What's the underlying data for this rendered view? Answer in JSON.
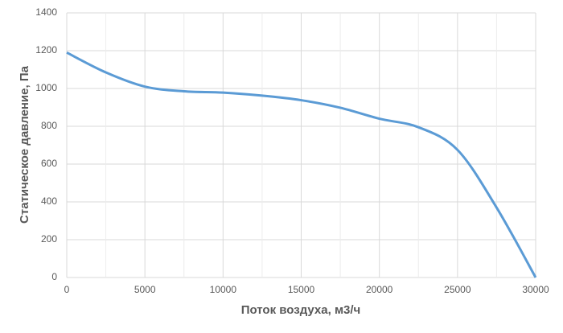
{
  "chart_data": {
    "type": "line",
    "x_label": "Поток воздуха, м3/ч",
    "y_label": "Статическое давление, Па",
    "x": [
      0,
      2500,
      5000,
      7500,
      10000,
      12500,
      15000,
      17500,
      20000,
      22500,
      25000,
      27500,
      30000
    ],
    "series": [
      {
        "name": "Статическое давление",
        "color": "#5b9bd5",
        "values": [
          1190,
          1085,
          1010,
          985,
          978,
          962,
          938,
          898,
          840,
          795,
          675,
          370,
          0
        ]
      }
    ],
    "xlim": [
      0,
      30000
    ],
    "xticks": [
      0,
      5000,
      10000,
      15000,
      20000,
      25000,
      30000
    ],
    "x_minor_grid": [
      2500,
      7500,
      12500,
      17500,
      22500,
      27500
    ],
    "ylim": [
      0,
      1400
    ],
    "yticks": [
      0,
      200,
      400,
      600,
      800,
      1000,
      1200,
      1400
    ],
    "grid": true,
    "smooth": true
  }
}
